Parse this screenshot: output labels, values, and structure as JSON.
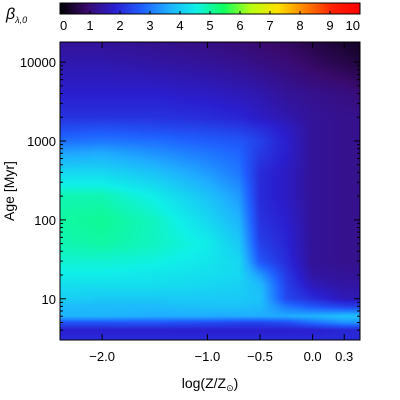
{
  "chart_data": {
    "type": "heatmap",
    "colorbar": {
      "label_symbol": "β",
      "label_subscript": "λ,0",
      "range": [
        0,
        10
      ],
      "ticks": [
        "0",
        "1",
        "2",
        "3",
        "4",
        "5",
        "6",
        "7",
        "8",
        "9",
        "10"
      ],
      "colormap": [
        "#000000",
        "#3a0a6e",
        "#2a1fd0",
        "#1f5fff",
        "#1fb0ff",
        "#10f0e8",
        "#10ff60",
        "#b8ff10",
        "#ffe000",
        "#ff8000",
        "#ff2000",
        "#ff0000"
      ]
    },
    "x_axis": {
      "label": "log(Z/Z",
      "label_sun": "⊙",
      "label_close": ")",
      "range": [
        -2.4,
        0.45
      ],
      "ticks": [
        {
          "value": -2.0,
          "label": "−2.0"
        },
        {
          "value": -1.0,
          "label": "−1.0"
        },
        {
          "value": -0.5,
          "label": "−0.5"
        },
        {
          "value": 0.0,
          "label": "0.0"
        },
        {
          "value": 0.3,
          "label": "0.3"
        }
      ]
    },
    "y_axis": {
      "label": "Age [Myr]",
      "scale": "log",
      "range": [
        3,
        18000
      ],
      "ticks": [
        {
          "value": 10,
          "label": "10"
        },
        {
          "value": 100,
          "label": "100"
        },
        {
          "value": 1000,
          "label": "1000"
        },
        {
          "value": 10000,
          "label": "10000"
        }
      ]
    },
    "field_samples": {
      "logZ": [
        -2.4,
        -2.0,
        -1.5,
        -1.0,
        -0.7,
        -0.5,
        -0.25,
        0.0,
        0.3,
        0.45
      ],
      "age_Myr": [
        3,
        4,
        5,
        6,
        8,
        10,
        15,
        20,
        30,
        50,
        100,
        200,
        400,
        700,
        1000,
        1500,
        2000,
        4000,
        10000,
        18000
      ],
      "beta": [
        [
          2.0,
          2.0,
          2.0,
          2.0,
          2.0,
          2.0,
          2.0,
          2.0,
          2.0,
          2.0
        ],
        [
          1.8,
          1.8,
          1.8,
          1.8,
          1.8,
          1.8,
          1.8,
          1.8,
          1.9,
          1.9
        ],
        [
          2.6,
          2.6,
          2.6,
          2.5,
          2.4,
          2.4,
          2.5,
          2.9,
          3.3,
          3.3
        ],
        [
          3.7,
          3.7,
          3.6,
          3.6,
          3.6,
          3.6,
          3.6,
          3.7,
          3.9,
          3.9
        ],
        [
          3.8,
          3.8,
          3.8,
          3.9,
          3.9,
          3.8,
          3.0,
          2.6,
          2.3,
          2.3
        ],
        [
          4.1,
          4.0,
          4.0,
          4.0,
          4.0,
          3.9,
          2.4,
          2.0,
          1.6,
          1.6
        ],
        [
          4.3,
          4.3,
          4.3,
          4.2,
          4.1,
          3.8,
          2.3,
          1.6,
          1.4,
          1.4
        ],
        [
          4.5,
          4.5,
          4.4,
          4.3,
          4.2,
          3.4,
          2.2,
          1.4,
          1.3,
          1.3
        ],
        [
          4.7,
          4.7,
          4.6,
          4.4,
          4.2,
          2.6,
          2.0,
          1.3,
          1.2,
          1.2
        ],
        [
          4.9,
          5.0,
          4.8,
          4.5,
          4.0,
          2.3,
          1.9,
          1.3,
          1.2,
          1.2
        ],
        [
          5.0,
          5.1,
          4.8,
          4.2,
          3.7,
          2.1,
          1.8,
          1.3,
          1.2,
          1.2
        ],
        [
          4.9,
          4.9,
          4.5,
          3.9,
          3.4,
          2.0,
          1.7,
          1.3,
          1.2,
          1.2
        ],
        [
          4.2,
          4.2,
          3.9,
          3.4,
          3.0,
          2.0,
          1.7,
          1.3,
          1.2,
          1.2
        ],
        [
          3.5,
          3.6,
          3.3,
          3.0,
          2.8,
          2.2,
          1.8,
          1.3,
          1.2,
          1.2
        ],
        [
          2.9,
          3.0,
          2.9,
          2.7,
          2.6,
          2.3,
          1.8,
          1.3,
          1.2,
          1.2
        ],
        [
          2.4,
          2.5,
          2.4,
          2.3,
          2.2,
          2.0,
          1.7,
          1.3,
          1.2,
          1.2
        ],
        [
          2.1,
          2.1,
          2.1,
          2.0,
          1.9,
          1.7,
          1.5,
          1.3,
          1.2,
          1.2
        ],
        [
          1.8,
          1.8,
          1.8,
          1.7,
          1.6,
          1.5,
          1.3,
          1.2,
          1.1,
          1.0
        ],
        [
          1.5,
          1.5,
          1.4,
          1.3,
          1.2,
          1.1,
          1.0,
          0.8,
          0.6,
          0.5
        ],
        [
          1.3,
          1.3,
          1.2,
          1.1,
          1.0,
          0.9,
          0.8,
          0.6,
          0.4,
          0.3
        ]
      ]
    }
  }
}
